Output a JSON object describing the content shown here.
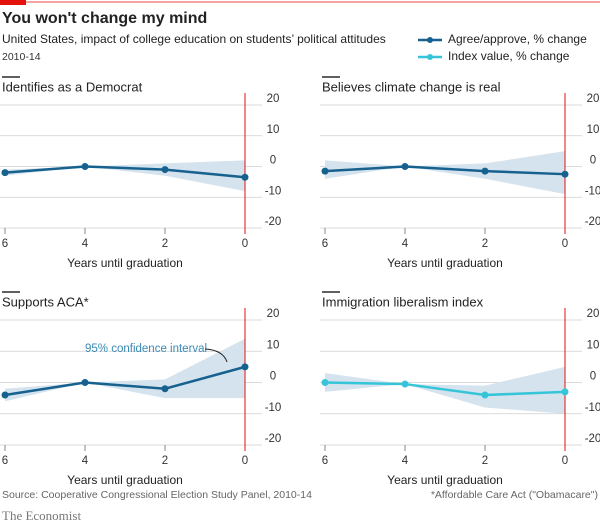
{
  "title": "You won't change my mind",
  "subtitle": "United States, impact of college education on students’ political attitudes",
  "period": "2010-14",
  "legend": [
    {
      "label": "Agree/approve, % change",
      "color": "#17618f"
    },
    {
      "label": "Index value, % change",
      "color": "#36c5d8"
    }
  ],
  "source": "Source: Cooperative Congressional Election Study Panel, 2010-14",
  "footnote": "*Affordable Care Act (\"Obamacare\")",
  "brand": "The Economist",
  "chart_data": [
    {
      "type": "line",
      "title": "Identifies as a Democrat",
      "x_label": "Years until graduation",
      "x": [
        6,
        4,
        2,
        0
      ],
      "xlim": [
        6,
        0
      ],
      "xticks": [
        6,
        4,
        2,
        0
      ],
      "ylim": [
        -20,
        20
      ],
      "yticks": [
        20,
        10,
        0,
        -10,
        -20
      ],
      "series": [
        {
          "color": "#17618f",
          "values": [
            -2,
            0,
            -1,
            -3.5
          ]
        }
      ],
      "band": {
        "color": "#d4e3ee",
        "upper": [
          -1,
          0,
          1,
          2
        ],
        "lower": [
          -3,
          0,
          -3,
          -8
        ]
      }
    },
    {
      "type": "line",
      "title": "Believes climate change is real",
      "x_label": "Years until graduation",
      "x": [
        6,
        4,
        2,
        0
      ],
      "xlim": [
        6,
        0
      ],
      "xticks": [
        6,
        4,
        2,
        0
      ],
      "ylim": [
        -20,
        20
      ],
      "yticks": [
        20,
        10,
        0,
        -10,
        -20
      ],
      "series": [
        {
          "color": "#17618f",
          "values": [
            -1.5,
            0,
            -1.5,
            -2.5
          ]
        }
      ],
      "band": {
        "color": "#d4e3ee",
        "upper": [
          2,
          0,
          1,
          5
        ],
        "lower": [
          -4,
          0,
          -4,
          -9
        ]
      }
    },
    {
      "type": "line",
      "title": "Supports ACA*",
      "x_label": "Years until graduation",
      "x": [
        6,
        4,
        2,
        0
      ],
      "xlim": [
        6,
        0
      ],
      "xticks": [
        6,
        4,
        2,
        0
      ],
      "ylim": [
        -20,
        20
      ],
      "yticks": [
        20,
        10,
        0,
        -10,
        -20
      ],
      "series": [
        {
          "color": "#17618f",
          "values": [
            -4,
            0,
            -2,
            5
          ]
        }
      ],
      "band": {
        "color": "#d4e3ee",
        "upper": [
          -2,
          0,
          1,
          14
        ],
        "lower": [
          -6,
          0,
          -5,
          -5
        ]
      },
      "annotation": "95% confidence interval"
    },
    {
      "type": "line",
      "title": "Immigration liberalism index",
      "x_label": "Years until graduation",
      "x": [
        6,
        4,
        2,
        0
      ],
      "xlim": [
        6,
        0
      ],
      "xticks": [
        6,
        4,
        2,
        0
      ],
      "ylim": [
        -20,
        20
      ],
      "yticks": [
        20,
        10,
        0,
        -10,
        -20
      ],
      "series": [
        {
          "color": "#36c5d8",
          "values": [
            0,
            -0.5,
            -4,
            -3
          ]
        }
      ],
      "band": {
        "color": "#d4e3ee",
        "upper": [
          3,
          -0.5,
          -1,
          5
        ],
        "lower": [
          -3,
          -0.5,
          -8,
          -10
        ]
      }
    }
  ]
}
